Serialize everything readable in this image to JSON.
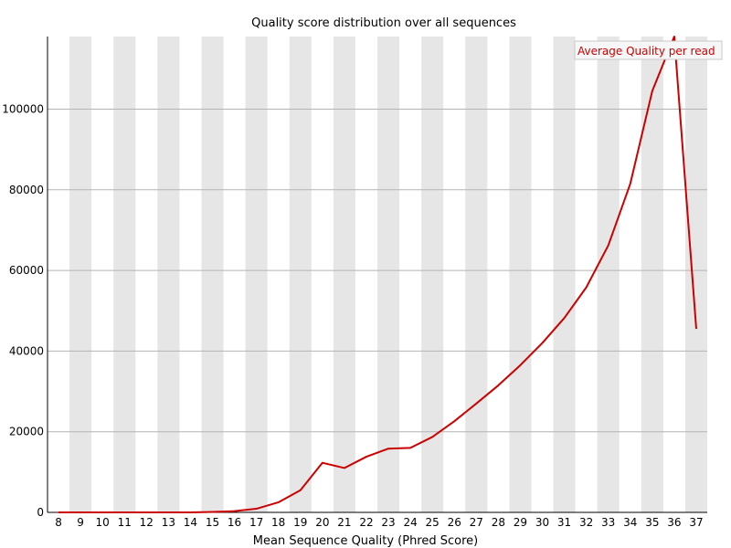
{
  "chart_data": {
    "type": "line",
    "title": "Quality score distribution over all sequences",
    "xlabel": "Mean Sequence Quality (Phred Score)",
    "ylabel": "",
    "x": [
      8,
      9,
      10,
      11,
      12,
      13,
      14,
      15,
      16,
      17,
      18,
      19,
      20,
      21,
      22,
      23,
      24,
      25,
      26,
      27,
      28,
      29,
      30,
      31,
      32,
      33,
      34,
      35,
      36,
      37
    ],
    "x_tick_labels": [
      "8",
      "9",
      "10",
      "11",
      "12",
      "13",
      "14",
      "15",
      "16",
      "17",
      "18",
      "19",
      "20",
      "21",
      "22",
      "23",
      "24",
      "25",
      "26",
      "27",
      "28",
      "29",
      "30",
      "31",
      "32",
      "33",
      "34",
      "35",
      "36",
      "37"
    ],
    "y_ticks": [
      0,
      20000,
      40000,
      60000,
      80000,
      100000
    ],
    "y_tick_labels": [
      "0",
      "20000",
      "40000",
      "60000",
      "80000",
      "100000"
    ],
    "ylim": [
      0,
      118000
    ],
    "grid": true,
    "alternating_column_shading": true,
    "legend_position": "top-right",
    "series": [
      {
        "name": "Average Quality per read",
        "color": "#cc0000",
        "values": [
          0,
          0,
          0,
          0,
          0,
          0,
          0,
          100,
          300,
          900,
          2500,
          5500,
          12300,
          11000,
          13800,
          15800,
          16000,
          18700,
          22600,
          27000,
          31500,
          36500,
          42000,
          48200,
          55800,
          66200,
          81500,
          104500,
          118000,
          45500
        ]
      }
    ]
  }
}
